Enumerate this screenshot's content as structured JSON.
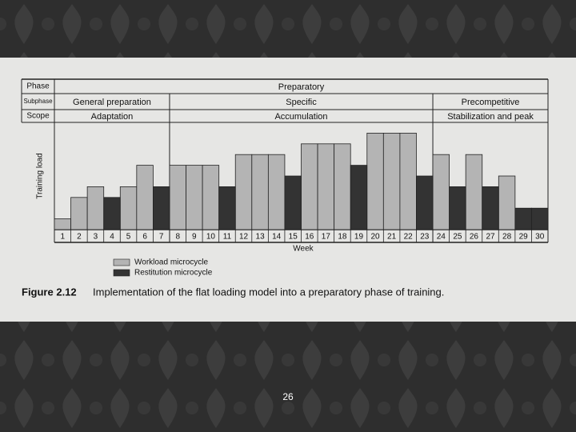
{
  "chart_data": {
    "type": "bar",
    "y_label": "Training load",
    "x_label": "Week",
    "row_headers": [
      "Phase",
      "Subphase",
      "Scope"
    ],
    "phase": [
      {
        "label": "Preparatory",
        "start": 1,
        "end": 30
      }
    ],
    "subphase": [
      {
        "label": "General preparation",
        "start": 1,
        "end": 7
      },
      {
        "label": "Specific",
        "start": 8,
        "end": 23
      },
      {
        "label": "Precompetitive",
        "start": 24,
        "end": 30
      }
    ],
    "scope": [
      {
        "label": "Adaptation",
        "start": 1,
        "end": 7
      },
      {
        "label": "Accumulation",
        "start": 8,
        "end": 23
      },
      {
        "label": "Stabilization and peak",
        "start": 24,
        "end": 30
      }
    ],
    "categories": [
      "1",
      "2",
      "3",
      "4",
      "5",
      "6",
      "7",
      "8",
      "9",
      "10",
      "11",
      "12",
      "13",
      "14",
      "15",
      "16",
      "17",
      "18",
      "19",
      "20",
      "21",
      "22",
      "23",
      "24",
      "25",
      "26",
      "27",
      "28",
      "29",
      "30"
    ],
    "series": [
      {
        "name": "Workload microcycle",
        "color": "#b4b4b4",
        "values": [
          1,
          3,
          4,
          null,
          4,
          6,
          null,
          6,
          6,
          6,
          null,
          7,
          7,
          7,
          null,
          8,
          8,
          8,
          null,
          9,
          9,
          9,
          null,
          7,
          null,
          7,
          null,
          5,
          null,
          null
        ]
      },
      {
        "name": "Restitution microcycle",
        "color": "#333333",
        "values": [
          null,
          null,
          null,
          3,
          null,
          null,
          4,
          null,
          null,
          null,
          4,
          null,
          null,
          null,
          5,
          null,
          null,
          null,
          6,
          null,
          null,
          null,
          5,
          null,
          4,
          null,
          4,
          null,
          2,
          2
        ]
      }
    ],
    "ylim": [
      0,
      10
    ],
    "caption_label": "Figure 2.12",
    "caption": "Implementation of the flat loading model into a preparatory phase of training.",
    "page_number": "26"
  }
}
